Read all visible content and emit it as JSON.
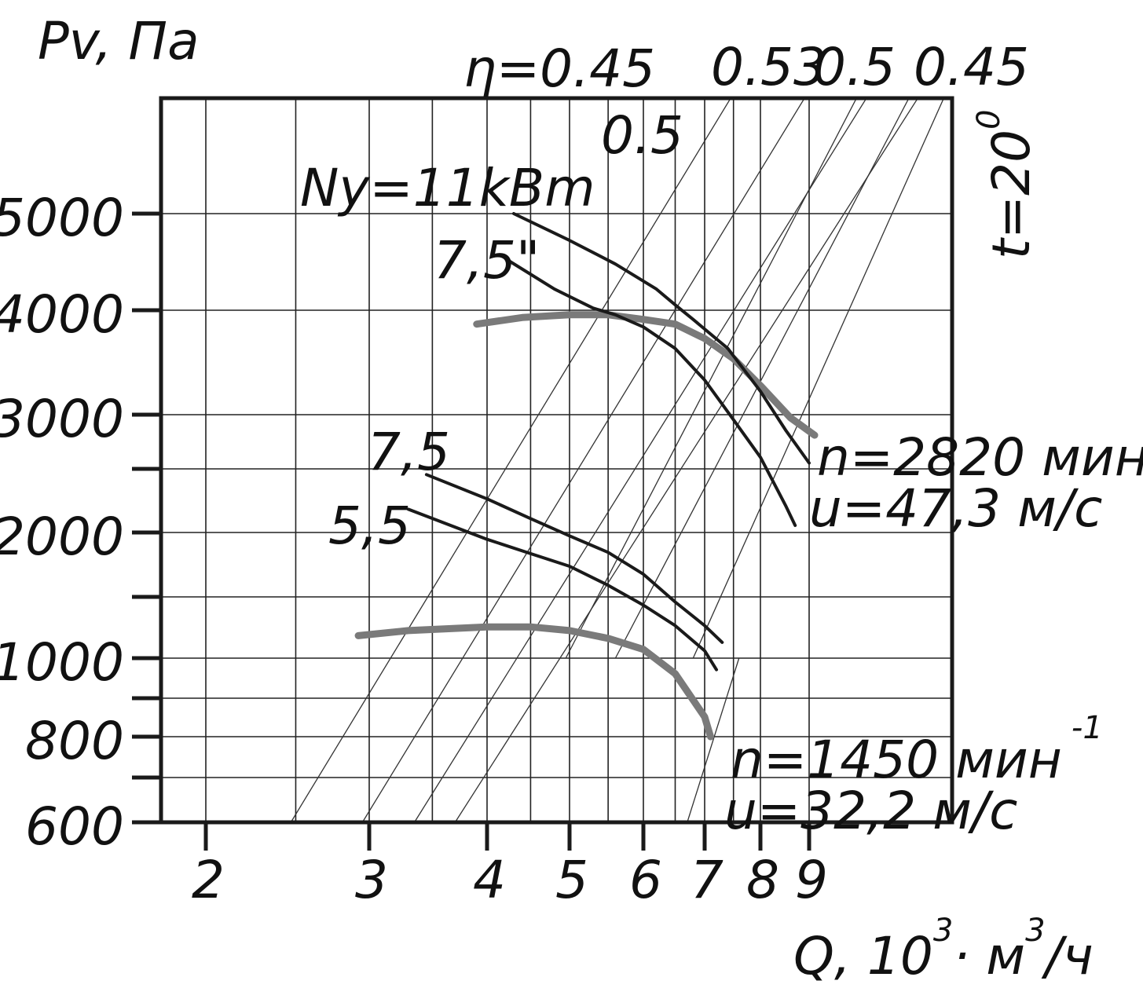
{
  "chart_data": {
    "type": "line",
    "xlabel": "Q, 10",
    "xlabel_sup1": "3",
    "xlabel_mid": "· м",
    "xlabel_sup2": "3",
    "xlabel_tail": "/ч",
    "ylabel": "Pv, Па",
    "scale": "log-log",
    "xlim": [
      1.8,
      12
    ],
    "ylim": [
      600,
      7000
    ],
    "x_ticks": [
      2,
      3,
      4,
      5,
      6,
      7,
      8,
      9
    ],
    "x_tick_labels": [
      "2",
      "3",
      "4",
      "5",
      "6",
      "7",
      "8",
      "9"
    ],
    "y_ticks": [
      600,
      700,
      800,
      900,
      1000,
      1500,
      2000,
      2500,
      3000,
      4000,
      5000
    ],
    "y_tick_labels": [
      {
        "value": 600,
        "label": "600"
      },
      {
        "value": 800,
        "label": "800"
      },
      {
        "value": 1000,
        "label": "1000"
      },
      {
        "value": 2000,
        "label": "2000"
      },
      {
        "value": 3000,
        "label": "3000"
      },
      {
        "value": 4000,
        "label": "4000"
      },
      {
        "value": 5000,
        "label": "5000"
      }
    ],
    "vertical_gridlines": [
      2,
      2.5,
      3,
      3.5,
      4,
      4.5,
      5,
      5.5,
      6,
      6.5,
      7,
      7.5,
      8,
      9,
      12
    ],
    "horizontal_gridlines": [
      600,
      700,
      800,
      900,
      1000,
      1500,
      2000,
      2500,
      3000,
      4000,
      5000
    ],
    "temperature_label": "t=20",
    "temperature_sup": "0",
    "efficiency_lines": [
      {
        "label": "η=0.45",
        "points": [
          [
            2.47,
            600
          ],
          [
            7.45,
            7000
          ]
        ]
      },
      {
        "label": "",
        "points": [
          [
            2.95,
            600
          ],
          [
            8.9,
            7000
          ]
        ]
      },
      {
        "label": "0.5",
        "points": [
          [
            3.35,
            600
          ],
          [
            10.1,
            7000
          ]
        ]
      },
      {
        "label": "",
        "points": [
          [
            3.7,
            600
          ],
          [
            11.2,
            7000
          ]
        ]
      },
      {
        "label": "0.53",
        "points": [
          [
            4.95,
            1000
          ],
          [
            9.9,
            7000
          ]
        ]
      },
      {
        "label": "0.5",
        "points": [
          [
            5.6,
            1000
          ],
          [
            11.0,
            7000
          ]
        ]
      },
      {
        "label": "0.45",
        "points": [
          [
            6.8,
            1000
          ],
          [
            11.8,
            7000
          ]
        ]
      },
      {
        "label": "",
        "points": [
          [
            6.7,
            600
          ],
          [
            7.6,
            1000
          ]
        ]
      }
    ],
    "series": [
      {
        "name": "n=2820 мин-1",
        "role": "Pv",
        "points": [
          [
            3.9,
            3850
          ],
          [
            4.4,
            3920
          ],
          [
            5.0,
            3950
          ],
          [
            5.5,
            3950
          ],
          [
            6.0,
            3900
          ],
          [
            6.5,
            3850
          ],
          [
            7.0,
            3700
          ],
          [
            7.5,
            3500
          ],
          [
            8.0,
            3250
          ],
          [
            8.6,
            2970
          ],
          [
            9.1,
            2800
          ]
        ]
      },
      {
        "name": "Ny=11kBm",
        "role": "power",
        "points": [
          [
            4.3,
            5000
          ],
          [
            5.0,
            4700
          ],
          [
            5.6,
            4450
          ],
          [
            6.2,
            4200
          ],
          [
            6.5,
            4050
          ],
          [
            6.8,
            3900
          ],
          [
            7.4,
            3600
          ],
          [
            8.0,
            3200
          ],
          [
            8.5,
            2850
          ],
          [
            9.0,
            2550
          ]
        ]
      },
      {
        "name": "7,5\"",
        "role": "power",
        "points": [
          [
            4.25,
            4480
          ],
          [
            4.8,
            4200
          ],
          [
            5.3,
            4020
          ],
          [
            5.6,
            3950
          ],
          [
            6.0,
            3820
          ],
          [
            6.5,
            3600
          ],
          [
            7.0,
            3300
          ],
          [
            7.5,
            2950
          ],
          [
            8.0,
            2600
          ],
          [
            8.5,
            2200
          ],
          [
            8.7,
            2050
          ]
        ]
      },
      {
        "name": "n=1450 мин-1",
        "role": "Pv",
        "points": [
          [
            2.92,
            1160
          ],
          [
            3.3,
            1200
          ],
          [
            4.0,
            1230
          ],
          [
            4.5,
            1230
          ],
          [
            5.0,
            1200
          ],
          [
            5.5,
            1140
          ],
          [
            6.0,
            1060
          ],
          [
            6.5,
            960
          ],
          [
            7.0,
            850
          ],
          [
            7.1,
            800
          ]
        ]
      },
      {
        "name": "7,5",
        "role": "power",
        "points": [
          [
            3.45,
            2450
          ],
          [
            4.0,
            2250
          ],
          [
            4.5,
            2100
          ],
          [
            5.0,
            1970
          ],
          [
            5.5,
            1830
          ],
          [
            6.0,
            1660
          ],
          [
            6.5,
            1450
          ],
          [
            7.0,
            1240
          ],
          [
            7.3,
            1110
          ]
        ]
      },
      {
        "name": "5,5",
        "role": "power",
        "points": [
          [
            3.3,
            2170
          ],
          [
            4.0,
            1940
          ],
          [
            4.5,
            1820
          ],
          [
            5.0,
            1720
          ],
          [
            5.5,
            1580
          ],
          [
            6.0,
            1420
          ],
          [
            6.5,
            1240
          ],
          [
            7.0,
            1050
          ],
          [
            7.2,
            970
          ]
        ]
      }
    ],
    "annotations": {
      "ny_label": "Ny=11kBm",
      "upper_p75_label": "7,5\"",
      "lower_p75_label": "7,5",
      "lower_p55_label": "5,5",
      "n_high": "n=2820 мин",
      "n_high_sup": "-1",
      "u_high": "u=47,3 м/с",
      "n_low": "n=1450 мин",
      "n_low_sup": "-1",
      "u_low": "u=32,2 м/с"
    },
    "grid": true,
    "legend": "none"
  }
}
